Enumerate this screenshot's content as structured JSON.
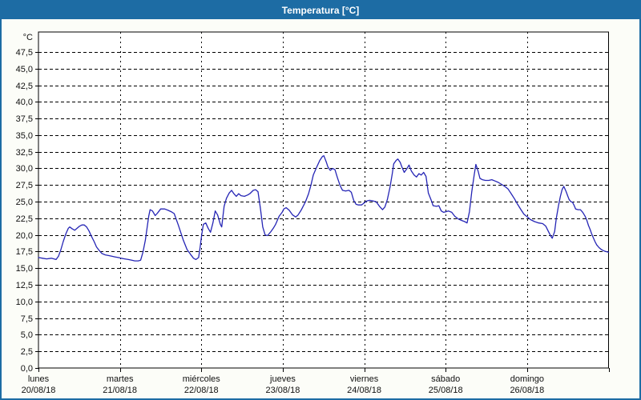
{
  "window": {
    "title": "Temperatura [°C]"
  },
  "colors": {
    "titlebar": "#1d6ca4",
    "window_border": "#1d6ca4",
    "content_background": "#fcfdf8",
    "plot_background": "#ffffff",
    "grid": "#000000",
    "axis": "#000000",
    "line": "#2525b5"
  },
  "chart_data": {
    "type": "line",
    "title": "Temperatura [°C]",
    "grid": "dashed",
    "legend": "none",
    "y_axis": {
      "unit_label": "°C",
      "min": 0,
      "max": 50,
      "tick_step": 2.5,
      "tick_labels": [
        "0,0",
        "2,5",
        "5,0",
        "7,5",
        "10,0",
        "12,5",
        "15,0",
        "17,5",
        "20,0",
        "22,5",
        "25,0",
        "27,5",
        "30,0",
        "32,5",
        "35,0",
        "37,5",
        "40,0",
        "42,5",
        "45,0",
        "47,5"
      ]
    },
    "x_axis": {
      "total_hours": 168,
      "hours_per_day": 24,
      "days": [
        {
          "name": "lunes",
          "date": "20/08/18"
        },
        {
          "name": "martes",
          "date": "21/08/18"
        },
        {
          "name": "miércoles",
          "date": "22/08/18"
        },
        {
          "name": "jueves",
          "date": "23/08/18"
        },
        {
          "name": "viernes",
          "date": "24/08/18"
        },
        {
          "name": "sábado",
          "date": "25/08/18"
        },
        {
          "name": "domingo",
          "date": "26/08/18"
        }
      ]
    },
    "series": [
      {
        "name": "Temperatura",
        "units": "°C",
        "points": [
          [
            0,
            16.6
          ],
          [
            1.2,
            16.5
          ],
          [
            2.4,
            16.4
          ],
          [
            3.8,
            16.5
          ],
          [
            5.2,
            16.3
          ],
          [
            5.9,
            16.8
          ],
          [
            6.6,
            17.8
          ],
          [
            7.3,
            19
          ],
          [
            8.1,
            20.2
          ],
          [
            8.8,
            21
          ],
          [
            9.2,
            21.2
          ],
          [
            10,
            20.9
          ],
          [
            10.7,
            20.7
          ],
          [
            11.4,
            21
          ],
          [
            12.1,
            21.3
          ],
          [
            12.8,
            21.5
          ],
          [
            13.5,
            21.5
          ],
          [
            14.2,
            21.2
          ],
          [
            14.9,
            20.6
          ],
          [
            15.6,
            19.8
          ],
          [
            16.4,
            19
          ],
          [
            17.1,
            18.2
          ],
          [
            18,
            17.6
          ],
          [
            18.7,
            17.2
          ],
          [
            19.7,
            17
          ],
          [
            20.6,
            16.9
          ],
          [
            21.6,
            16.8
          ],
          [
            22.5,
            16.7
          ],
          [
            23.5,
            16.6
          ],
          [
            24.4,
            16.5
          ],
          [
            25.4,
            16.4
          ],
          [
            26.5,
            16.3
          ],
          [
            27.5,
            16.2
          ],
          [
            28.4,
            16.1
          ],
          [
            29.4,
            16.1
          ],
          [
            30.1,
            16.2
          ],
          [
            30.8,
            17.4
          ],
          [
            31.5,
            19.2
          ],
          [
            32,
            21
          ],
          [
            32.5,
            22.8
          ],
          [
            32.9,
            23.8
          ],
          [
            33.6,
            23.6
          ],
          [
            34.4,
            22.9
          ],
          [
            35.1,
            23.3
          ],
          [
            36,
            23.9
          ],
          [
            37.2,
            23.9
          ],
          [
            38.2,
            23.7
          ],
          [
            39.1,
            23.5
          ],
          [
            40,
            23.2
          ],
          [
            41.2,
            21.5
          ],
          [
            42.7,
            19.2
          ],
          [
            43.8,
            17.8
          ],
          [
            44.8,
            17.1
          ],
          [
            45.7,
            16.5
          ],
          [
            46.4,
            16.3
          ],
          [
            47.2,
            16.6
          ],
          [
            47.6,
            18
          ],
          [
            48.1,
            20
          ],
          [
            48.6,
            21.6
          ],
          [
            49.3,
            21.8
          ],
          [
            50,
            21
          ],
          [
            50.7,
            20.4
          ],
          [
            51.4,
            21.8
          ],
          [
            52.1,
            23.6
          ],
          [
            52.8,
            23
          ],
          [
            53.6,
            21.6
          ],
          [
            54,
            21.2
          ],
          [
            54.7,
            24.3
          ],
          [
            55.4,
            25.5
          ],
          [
            56.2,
            26.3
          ],
          [
            56.9,
            26.7
          ],
          [
            57.6,
            26.2
          ],
          [
            58.3,
            25.8
          ],
          [
            59,
            26.2
          ],
          [
            59.7,
            25.9
          ],
          [
            60.7,
            25.8
          ],
          [
            61.6,
            26
          ],
          [
            62.3,
            26.2
          ],
          [
            63.3,
            26.7
          ],
          [
            64,
            26.8
          ],
          [
            64.7,
            26.5
          ],
          [
            65.4,
            24
          ],
          [
            66.1,
            21.2
          ],
          [
            66.8,
            20
          ],
          [
            67.5,
            19.9
          ],
          [
            68.5,
            20.5
          ],
          [
            69.2,
            21
          ],
          [
            69.9,
            21.6
          ],
          [
            70.9,
            22.8
          ],
          [
            71.8,
            23.4
          ],
          [
            72.3,
            23.9
          ],
          [
            73,
            24.1
          ],
          [
            73.9,
            23.7
          ],
          [
            74.9,
            23
          ],
          [
            75.8,
            22.7
          ],
          [
            76.5,
            23
          ],
          [
            77.5,
            23.8
          ],
          [
            78.7,
            25
          ],
          [
            79.6,
            26.2
          ],
          [
            80.3,
            27.5
          ],
          [
            81,
            29
          ],
          [
            82,
            30.2
          ],
          [
            82.9,
            31.2
          ],
          [
            83.7,
            31.8
          ],
          [
            84.1,
            31.9
          ],
          [
            84.8,
            31
          ],
          [
            85.3,
            30.2
          ],
          [
            86,
            29.7
          ],
          [
            86.7,
            30
          ],
          [
            87.4,
            29.8
          ],
          [
            88.1,
            28.6
          ],
          [
            88.9,
            27.4
          ],
          [
            89.6,
            26.7
          ],
          [
            90.5,
            26.6
          ],
          [
            91.5,
            26.7
          ],
          [
            92.2,
            26.4
          ],
          [
            92.9,
            25.2
          ],
          [
            93.6,
            24.6
          ],
          [
            94.3,
            24.5
          ],
          [
            95.2,
            24.5
          ],
          [
            95.7,
            24.7
          ],
          [
            96.7,
            25.1
          ],
          [
            97.6,
            25.2
          ],
          [
            98.6,
            25.1
          ],
          [
            99.5,
            25
          ],
          [
            100.5,
            24.3
          ],
          [
            101.4,
            23.8
          ],
          [
            102.1,
            24.2
          ],
          [
            102.8,
            25.3
          ],
          [
            103.6,
            27.2
          ],
          [
            104.3,
            29.3
          ],
          [
            104.7,
            30.7
          ],
          [
            105.4,
            31.2
          ],
          [
            105.9,
            31.4
          ],
          [
            106.6,
            30.9
          ],
          [
            107.1,
            30.2
          ],
          [
            107.8,
            29.4
          ],
          [
            108.5,
            29.9
          ],
          [
            109.2,
            30.5
          ],
          [
            109.9,
            29.6
          ],
          [
            110.7,
            29
          ],
          [
            111.4,
            28.7
          ],
          [
            112.1,
            29.2
          ],
          [
            112.8,
            29
          ],
          [
            113.5,
            29.4
          ],
          [
            114.2,
            28.8
          ],
          [
            114.9,
            26.3
          ],
          [
            115.9,
            25
          ],
          [
            116.3,
            24.4
          ],
          [
            117.3,
            24.3
          ],
          [
            118,
            24.4
          ],
          [
            118.7,
            23.6
          ],
          [
            119.4,
            23.4
          ],
          [
            120.1,
            23.5
          ],
          [
            120.8,
            23.6
          ],
          [
            121.8,
            23.4
          ],
          [
            122.7,
            22.8
          ],
          [
            123.7,
            22.4
          ],
          [
            124.6,
            22.2
          ],
          [
            125.6,
            22
          ],
          [
            126.3,
            21.8
          ],
          [
            127,
            23.5
          ],
          [
            127.7,
            26.5
          ],
          [
            128.4,
            29
          ],
          [
            128.9,
            30.6
          ],
          [
            129.6,
            29.5
          ],
          [
            130.1,
            28.5
          ],
          [
            130.8,
            28.3
          ],
          [
            131.7,
            28.2
          ],
          [
            132.7,
            28.2
          ],
          [
            133.6,
            28.3
          ],
          [
            134.6,
            28.1
          ],
          [
            135.5,
            27.9
          ],
          [
            136.5,
            27.6
          ],
          [
            137.4,
            27.3
          ],
          [
            138.4,
            26.9
          ],
          [
            139.3,
            26.2
          ],
          [
            140.3,
            25.4
          ],
          [
            141.2,
            24.6
          ],
          [
            142.2,
            23.8
          ],
          [
            143.1,
            23.1
          ],
          [
            144.1,
            22.7
          ],
          [
            145,
            22.3
          ],
          [
            146.2,
            22
          ],
          [
            147.4,
            21.8
          ],
          [
            148.6,
            21.7
          ],
          [
            149.5,
            21.3
          ],
          [
            150.2,
            20.6
          ],
          [
            151,
            19.8
          ],
          [
            151.4,
            19.5
          ],
          [
            152.1,
            20.5
          ],
          [
            152.6,
            22.5
          ],
          [
            153.3,
            24.5
          ],
          [
            153.8,
            25.8
          ],
          [
            154.3,
            26.8
          ],
          [
            154.8,
            27.3
          ],
          [
            155.5,
            26.5
          ],
          [
            156,
            25.8
          ],
          [
            156.4,
            25.3
          ],
          [
            156.9,
            25
          ],
          [
            157.4,
            24.9
          ],
          [
            157.9,
            24.4
          ],
          [
            158.3,
            23.9
          ],
          [
            159,
            23.8
          ],
          [
            159.7,
            23.8
          ],
          [
            160.4,
            23.4
          ],
          [
            161.1,
            22.8
          ],
          [
            161.6,
            22.2
          ],
          [
            162.1,
            21.4
          ],
          [
            162.6,
            20.8
          ],
          [
            163,
            20.2
          ],
          [
            163.5,
            19.6
          ],
          [
            164,
            19
          ],
          [
            164.5,
            18.5
          ],
          [
            165.2,
            18.1
          ],
          [
            165.9,
            17.8
          ],
          [
            166.6,
            17.6
          ],
          [
            167.3,
            17.5
          ],
          [
            168,
            17.4
          ]
        ]
      }
    ]
  }
}
